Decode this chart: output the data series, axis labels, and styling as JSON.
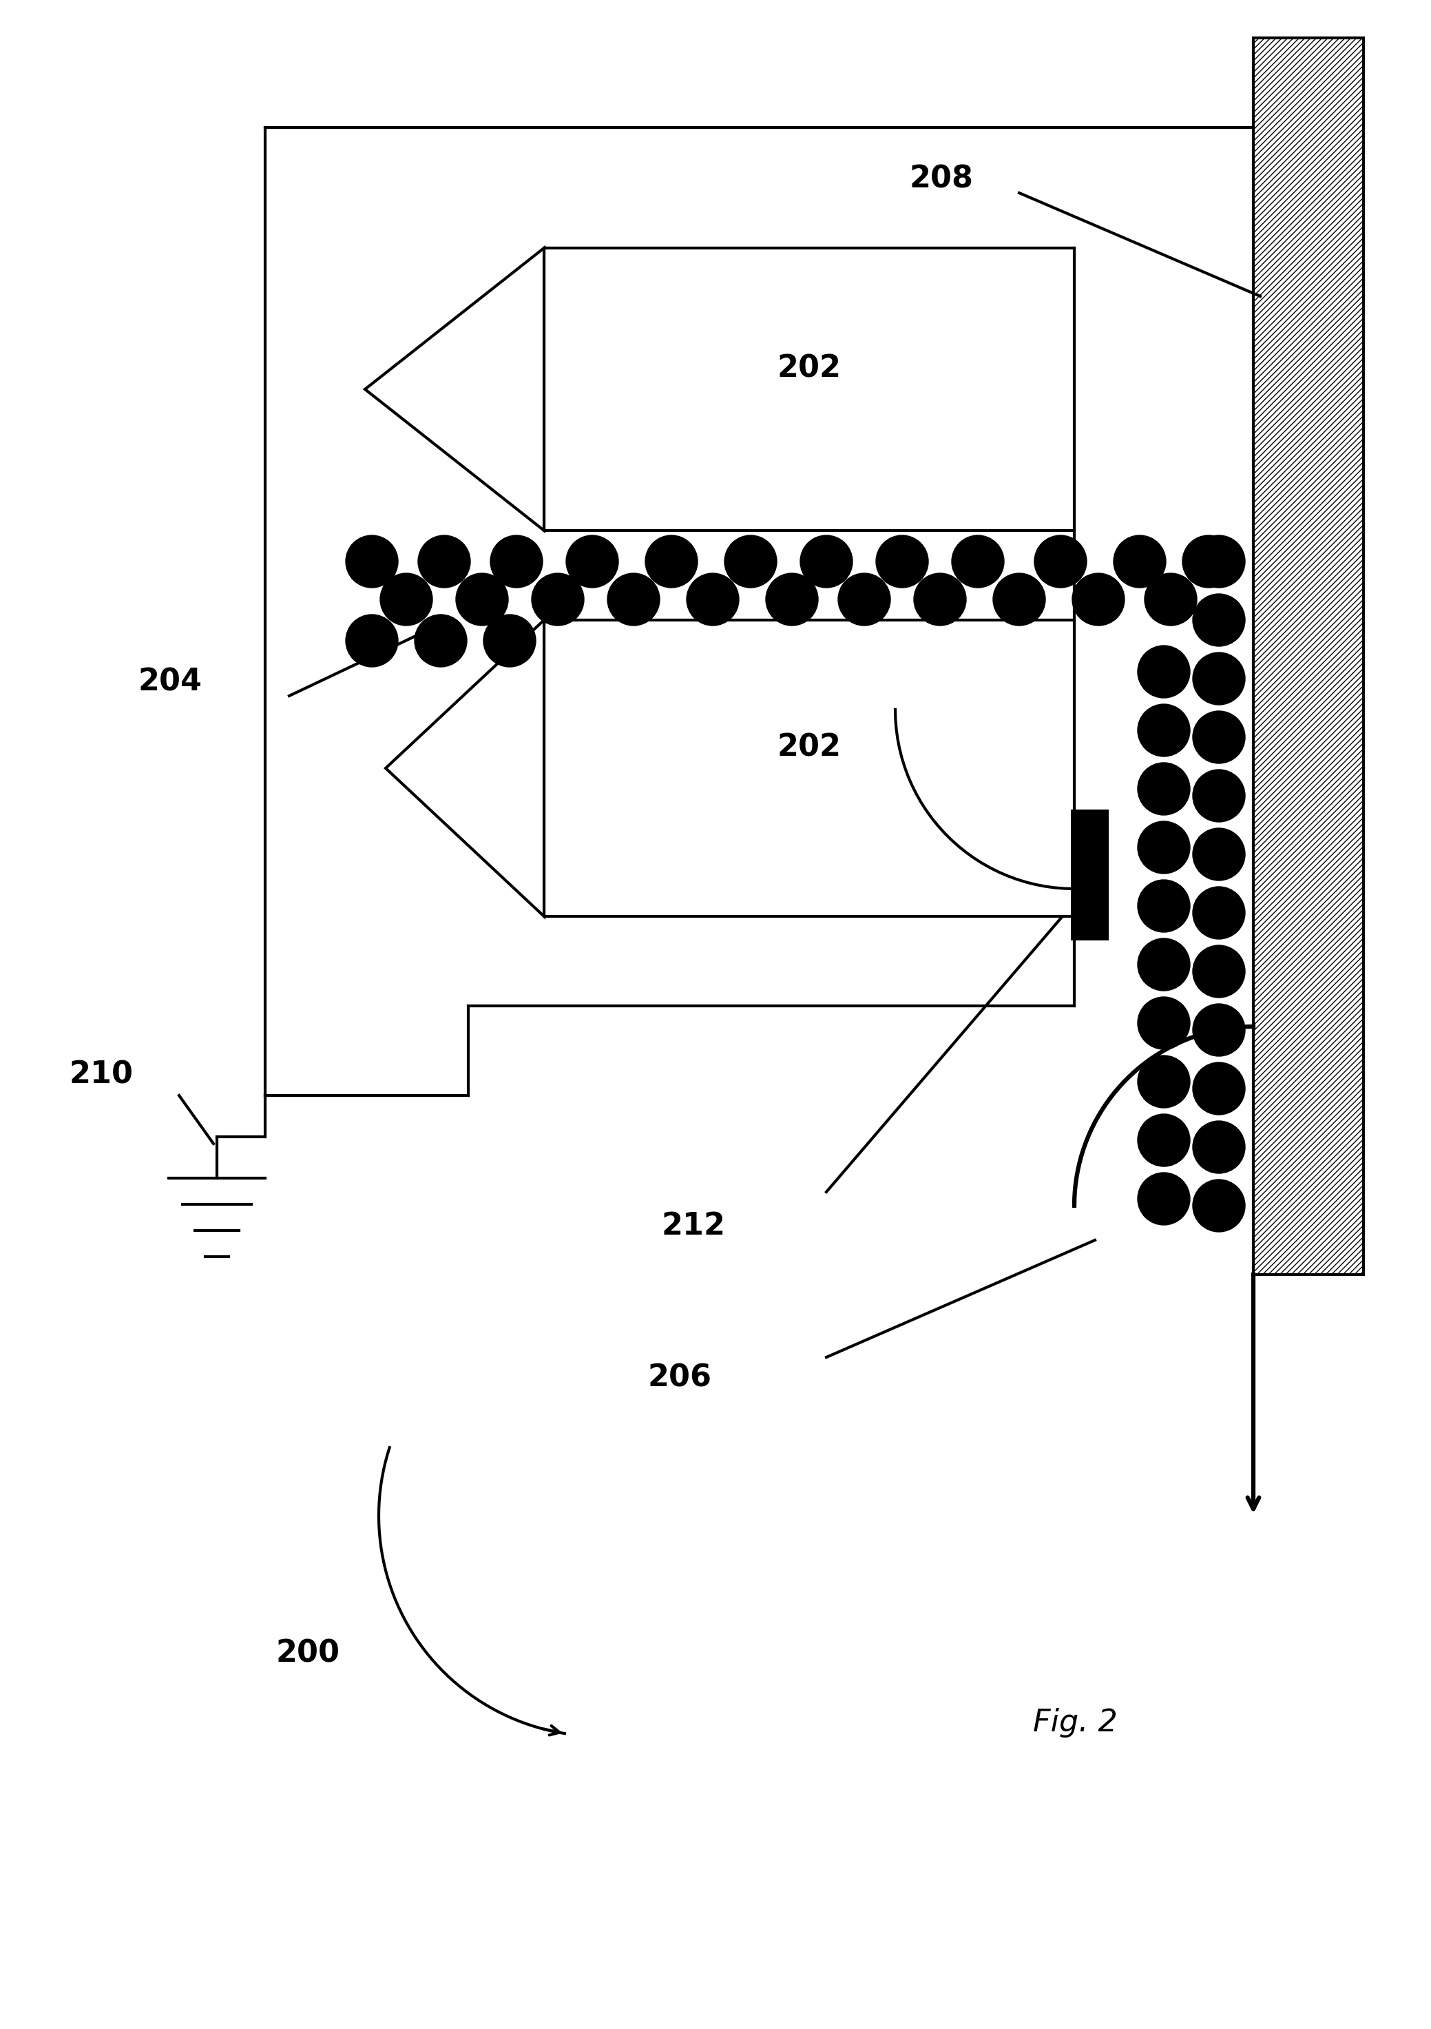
{
  "fig_label": "Fig. 2",
  "label_200": "200",
  "label_202a": "202",
  "label_202b": "202",
  "label_204": "204",
  "label_206": "206",
  "label_208": "208",
  "label_210": "210",
  "label_212": "212",
  "bg_color": "#ffffff",
  "line_color": "#000000",
  "particle_color": "#000000",
  "lw": 3.0,
  "label_fontsize": 32
}
